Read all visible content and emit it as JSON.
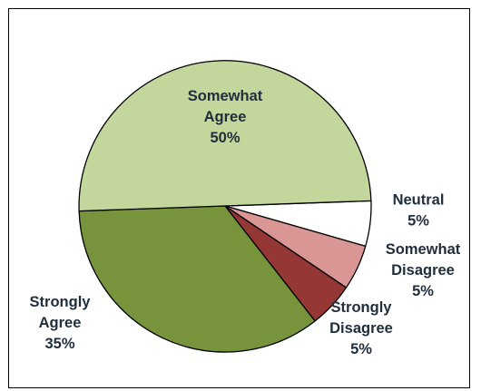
{
  "chart_data": {
    "type": "pie",
    "title": "",
    "start_angle_deg": -2,
    "direction": "clockwise",
    "slices": [
      {
        "label_lines": [
          "Neutral",
          "5%"
        ],
        "value": 5,
        "color": "#ffffff"
      },
      {
        "label_lines": [
          "Somewhat",
          "Disagree",
          "5%"
        ],
        "value": 5,
        "color": "#d99694"
      },
      {
        "label_lines": [
          "Strongly",
          "Disagree",
          "5%"
        ],
        "value": 5,
        "color": "#953735"
      },
      {
        "label_lines": [
          "Strongly",
          "Agree",
          "35%"
        ],
        "value": 35,
        "color": "#77933c"
      },
      {
        "label_lines": [
          "Somewhat",
          "Agree",
          "50%"
        ],
        "value": 50,
        "color": "#c3d69b"
      }
    ],
    "legend": "none",
    "slice_outline_color": "#000000"
  }
}
